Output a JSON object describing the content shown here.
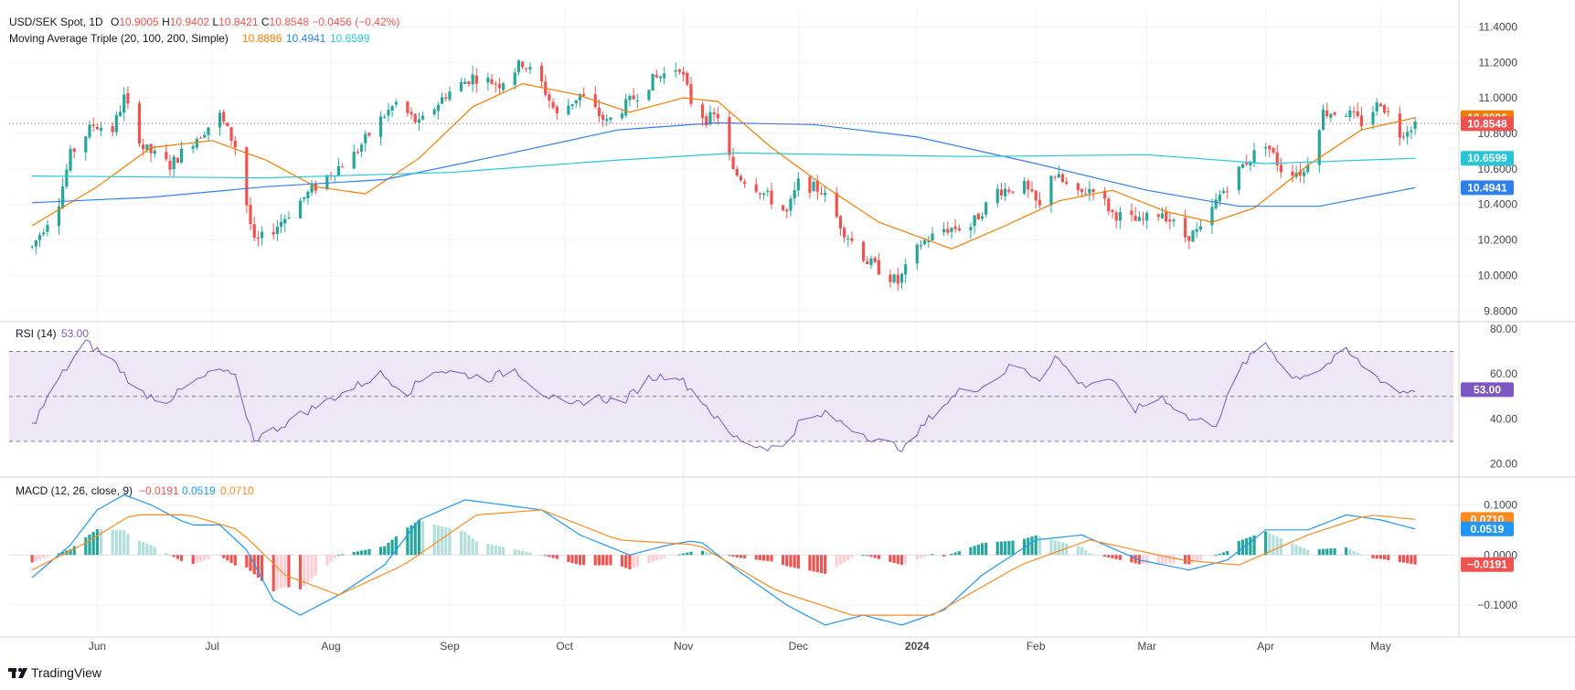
{
  "header": {
    "symbol": "USD/SEK Spot, 1D",
    "ohlc": [
      {
        "k": "O",
        "v": "10.9005"
      },
      {
        "k": "H",
        "v": "10.9402"
      },
      {
        "k": "L",
        "v": "10.8421"
      },
      {
        "k": "C",
        "v": "10.8548"
      }
    ],
    "change": "−0.0456 (−0.42%)",
    "ma_label": "Moving Average Triple (20, 100, 200, Simple)",
    "ma_values": [
      "10.8886",
      "10.4941",
      "10.6599"
    ],
    "rsi_label": "RSI (14)",
    "rsi_value": "53.00",
    "macd_label": "MACD (12, 26, close, 9)",
    "macd_values": [
      "−0.0191",
      "0.0519",
      "0.0710"
    ]
  },
  "branding": {
    "logo_text": "TradingView"
  },
  "colors": {
    "up": "#26a69a",
    "down": "#ef5350",
    "ma20": "#f57c00",
    "ma100": "#2f80ed",
    "ma200": "#26c6da",
    "rsi": "#7e57c2",
    "rsi_band": "#ede7f6",
    "macd": "#2196f3",
    "signal": "#ff8a1f",
    "hist_up_strong": "#26a69a",
    "hist_up_weak": "#b2dfdb",
    "hist_down_strong": "#ef5350",
    "hist_down_weak": "#ffcdd2",
    "grid": "#f0f3fa",
    "text": "#131722",
    "axis_text": "#434651",
    "last_line": "#ef5350"
  },
  "chart_data": [
    {
      "type": "candlestick",
      "title": "USD/SEK Spot, 1D",
      "x_ticks": [
        "Jun",
        "Jul",
        "Aug",
        "Sep",
        "Oct",
        "Nov",
        "Dec",
        "2024",
        "Feb",
        "Mar",
        "Apr",
        "May"
      ],
      "y_ticks": [
        "11.4000",
        "11.2000",
        "11.0000",
        "10.8000",
        "10.6000",
        "10.4000",
        "10.2000",
        "10.0000",
        "9.8000"
      ],
      "ylim": [
        9.75,
        11.5
      ],
      "price_path": [
        [
          "2023-05-15",
          10.16
        ],
        [
          "2023-05-22",
          10.42
        ],
        [
          "2023-05-25",
          10.68
        ],
        [
          "2023-05-31",
          10.85
        ],
        [
          "2023-06-05",
          10.82
        ],
        [
          "2023-06-08",
          11.0
        ],
        [
          "2023-06-13",
          10.72
        ],
        [
          "2023-06-20",
          10.62
        ],
        [
          "2023-06-26",
          10.76
        ],
        [
          "2023-07-03",
          10.9
        ],
        [
          "2023-07-07",
          10.73
        ],
        [
          "2023-07-12",
          10.18
        ],
        [
          "2023-07-17",
          10.26
        ],
        [
          "2023-07-24",
          10.42
        ],
        [
          "2023-07-31",
          10.56
        ],
        [
          "2023-08-07",
          10.68
        ],
        [
          "2023-08-14",
          10.88
        ],
        [
          "2023-08-18",
          10.97
        ],
        [
          "2023-08-24",
          10.85
        ],
        [
          "2023-08-31",
          11.02
        ],
        [
          "2023-09-07",
          11.12
        ],
        [
          "2023-09-14",
          11.08
        ],
        [
          "2023-09-20",
          11.2
        ],
        [
          "2023-09-25",
          11.08
        ],
        [
          "2023-09-29",
          10.9
        ],
        [
          "2023-10-05",
          11.02
        ],
        [
          "2023-10-12",
          10.86
        ],
        [
          "2023-10-18",
          10.98
        ],
        [
          "2023-10-24",
          11.1
        ],
        [
          "2023-10-31",
          11.18
        ],
        [
          "2023-11-03",
          10.98
        ],
        [
          "2023-11-07",
          10.88
        ],
        [
          "2023-11-10",
          10.9
        ],
        [
          "2023-11-14",
          10.58
        ],
        [
          "2023-11-20",
          10.5
        ],
        [
          "2023-11-28",
          10.35
        ],
        [
          "2023-12-01",
          10.52
        ],
        [
          "2023-12-07",
          10.48
        ],
        [
          "2023-12-13",
          10.25
        ],
        [
          "2023-12-19",
          10.08
        ],
        [
          "2023-12-27",
          9.96
        ],
        [
          "2024-01-02",
          10.18
        ],
        [
          "2024-01-08",
          10.26
        ],
        [
          "2024-01-15",
          10.28
        ],
        [
          "2024-01-22",
          10.48
        ],
        [
          "2024-01-29",
          10.5
        ],
        [
          "2024-02-02",
          10.38
        ],
        [
          "2024-02-05",
          10.58
        ],
        [
          "2024-02-12",
          10.45
        ],
        [
          "2024-02-16",
          10.5
        ],
        [
          "2024-02-21",
          10.35
        ],
        [
          "2024-02-28",
          10.3
        ],
        [
          "2024-03-05",
          10.36
        ],
        [
          "2024-03-11",
          10.22
        ],
        [
          "2024-03-15",
          10.25
        ],
        [
          "2024-03-20",
          10.45
        ],
        [
          "2024-03-26",
          10.62
        ],
        [
          "2024-04-01",
          10.75
        ],
        [
          "2024-04-05",
          10.6
        ],
        [
          "2024-04-11",
          10.58
        ],
        [
          "2024-04-16",
          10.92
        ],
        [
          "2024-04-22",
          10.92
        ],
        [
          "2024-04-26",
          10.86
        ],
        [
          "2024-05-01",
          10.98
        ],
        [
          "2024-05-06",
          10.8
        ],
        [
          "2024-05-10",
          10.86
        ]
      ],
      "series": [
        {
          "name": "20",
          "value": 10.8886,
          "values": [
            [
              "2023-05-15",
              10.28
            ],
            [
              "2023-06-01",
              10.5
            ],
            [
              "2023-06-15",
              10.72
            ],
            [
              "2023-07-01",
              10.76
            ],
            [
              "2023-07-15",
              10.65
            ],
            [
              "2023-07-28",
              10.5
            ],
            [
              "2023-08-10",
              10.46
            ],
            [
              "2023-08-24",
              10.66
            ],
            [
              "2023-09-07",
              10.95
            ],
            [
              "2023-09-20",
              11.08
            ],
            [
              "2023-10-04",
              11.02
            ],
            [
              "2023-10-18",
              10.92
            ],
            [
              "2023-11-01",
              11.0
            ],
            [
              "2023-11-10",
              10.98
            ],
            [
              "2023-11-24",
              10.72
            ],
            [
              "2023-12-08",
              10.5
            ],
            [
              "2023-12-22",
              10.3
            ],
            [
              "2024-01-10",
              10.15
            ],
            [
              "2024-01-24",
              10.28
            ],
            [
              "2024-02-07",
              10.42
            ],
            [
              "2024-02-21",
              10.48
            ],
            [
              "2024-03-06",
              10.36
            ],
            [
              "2024-03-18",
              10.3
            ],
            [
              "2024-03-29",
              10.38
            ],
            [
              "2024-04-12",
              10.62
            ],
            [
              "2024-04-26",
              10.82
            ],
            [
              "2024-05-10",
              10.8886
            ]
          ]
        },
        {
          "name": "100",
          "value": 10.4941,
          "values": [
            [
              "2023-05-15",
              10.41
            ],
            [
              "2023-06-15",
              10.44
            ],
            [
              "2023-07-15",
              10.5
            ],
            [
              "2023-08-15",
              10.54
            ],
            [
              "2023-09-15",
              10.68
            ],
            [
              "2023-10-15",
              10.82
            ],
            [
              "2023-11-10",
              10.86
            ],
            [
              "2023-12-05",
              10.85
            ],
            [
              "2024-01-01",
              10.78
            ],
            [
              "2024-02-01",
              10.63
            ],
            [
              "2024-03-01",
              10.48
            ],
            [
              "2024-03-25",
              10.39
            ],
            [
              "2024-04-15",
              10.39
            ],
            [
              "2024-05-10",
              10.4941
            ]
          ]
        },
        {
          "name": "200",
          "value": 10.6599,
          "values": [
            [
              "2023-05-15",
              10.56
            ],
            [
              "2023-07-15",
              10.55
            ],
            [
              "2023-09-01",
              10.58
            ],
            [
              "2023-10-15",
              10.65
            ],
            [
              "2023-11-15",
              10.69
            ],
            [
              "2024-01-15",
              10.67
            ],
            [
              "2024-03-01",
              10.68
            ],
            [
              "2024-04-01",
              10.63
            ],
            [
              "2024-05-10",
              10.6599
            ]
          ]
        }
      ]
    },
    {
      "type": "line",
      "title": "RSI (14)",
      "y_ticks": [
        "80.00",
        "60.00",
        "40.00",
        "20.00"
      ],
      "ylim": [
        15,
        82
      ],
      "levels": [
        70,
        50,
        30
      ],
      "series": [
        {
          "name": "RSI",
          "last": 53.0,
          "values": [
            [
              "2023-05-15",
              37
            ],
            [
              "2023-05-22",
              58
            ],
            [
              "2023-05-29",
              74
            ],
            [
              "2023-06-05",
              66
            ],
            [
              "2023-06-12",
              52
            ],
            [
              "2023-06-19",
              48
            ],
            [
              "2023-06-26",
              56
            ],
            [
              "2023-07-03",
              62
            ],
            [
              "2023-07-07",
              58
            ],
            [
              "2023-07-12",
              31
            ],
            [
              "2023-07-17",
              35
            ],
            [
              "2023-07-24",
              42
            ],
            [
              "2023-07-31",
              48
            ],
            [
              "2023-08-07",
              54
            ],
            [
              "2023-08-14",
              60
            ],
            [
              "2023-08-21",
              52
            ],
            [
              "2023-08-28",
              62
            ],
            [
              "2023-09-04",
              60
            ],
            [
              "2023-09-11",
              58
            ],
            [
              "2023-09-18",
              62
            ],
            [
              "2023-09-25",
              52
            ],
            [
              "2023-10-02",
              45
            ],
            [
              "2023-10-09",
              50
            ],
            [
              "2023-10-16",
              47
            ],
            [
              "2023-10-23",
              58
            ],
            [
              "2023-10-30",
              60
            ],
            [
              "2023-11-06",
              48
            ],
            [
              "2023-11-13",
              33
            ],
            [
              "2023-11-20",
              28
            ],
            [
              "2023-11-27",
              27
            ],
            [
              "2023-12-01",
              38
            ],
            [
              "2023-12-08",
              42
            ],
            [
              "2023-12-15",
              36
            ],
            [
              "2023-12-22",
              30
            ],
            [
              "2023-12-29",
              27
            ],
            [
              "2024-01-05",
              42
            ],
            [
              "2024-01-12",
              52
            ],
            [
              "2024-01-19",
              55
            ],
            [
              "2024-01-26",
              64
            ],
            [
              "2024-02-02",
              58
            ],
            [
              "2024-02-06",
              68
            ],
            [
              "2024-02-13",
              55
            ],
            [
              "2024-02-20",
              58
            ],
            [
              "2024-02-27",
              44
            ],
            [
              "2024-03-05",
              50
            ],
            [
              "2024-03-12",
              40
            ],
            [
              "2024-03-19",
              38
            ],
            [
              "2024-03-26",
              64
            ],
            [
              "2024-04-01",
              74
            ],
            [
              "2024-04-08",
              58
            ],
            [
              "2024-04-15",
              62
            ],
            [
              "2024-04-22",
              70
            ],
            [
              "2024-04-29",
              60
            ],
            [
              "2024-05-06",
              52
            ],
            [
              "2024-05-10",
              53
            ]
          ]
        }
      ]
    },
    {
      "type": "bar+line",
      "title": "MACD (12, 26, close, 9)",
      "y_ticks": [
        "0.1000",
        "0.0000",
        "−0.1000"
      ],
      "ylim": [
        -0.16,
        0.15
      ],
      "series": [
        {
          "name": "MACD",
          "last": 0.0519,
          "values": [
            [
              "2023-05-15",
              -0.045
            ],
            [
              "2023-05-25",
              0.02
            ],
            [
              "2023-06-01",
              0.09
            ],
            [
              "2023-06-08",
              0.12
            ],
            [
              "2023-06-15",
              0.1
            ],
            [
              "2023-06-25",
              0.06
            ],
            [
              "2023-07-03",
              0.06
            ],
            [
              "2023-07-10",
              0.01
            ],
            [
              "2023-07-17",
              -0.09
            ],
            [
              "2023-07-24",
              -0.12
            ],
            [
              "2023-08-03",
              -0.08
            ],
            [
              "2023-08-15",
              -0.02
            ],
            [
              "2023-08-24",
              0.07
            ],
            [
              "2023-09-05",
              0.11
            ],
            [
              "2023-09-15",
              0.1
            ],
            [
              "2023-09-25",
              0.09
            ],
            [
              "2023-10-05",
              0.04
            ],
            [
              "2023-10-18",
              0.0
            ],
            [
              "2023-10-28",
              0.02
            ],
            [
              "2023-11-05",
              0.03
            ],
            [
              "2023-11-15",
              -0.03
            ],
            [
              "2023-11-28",
              -0.1
            ],
            [
              "2023-12-08",
              -0.14
            ],
            [
              "2023-12-18",
              -0.12
            ],
            [
              "2023-12-28",
              -0.14
            ],
            [
              "2024-01-08",
              -0.11
            ],
            [
              "2024-01-18",
              -0.04
            ],
            [
              "2024-02-01",
              0.03
            ],
            [
              "2024-02-13",
              0.04
            ],
            [
              "2024-02-28",
              -0.01
            ],
            [
              "2024-03-12",
              -0.03
            ],
            [
              "2024-03-22",
              -0.01
            ],
            [
              "2024-04-01",
              0.05
            ],
            [
              "2024-04-12",
              0.05
            ],
            [
              "2024-04-22",
              0.08
            ],
            [
              "2024-05-01",
              0.07
            ],
            [
              "2024-05-10",
              0.0519
            ]
          ]
        },
        {
          "name": "Signal",
          "last": 0.071,
          "values": [
            [
              "2023-05-15",
              -0.03
            ],
            [
              "2023-05-28",
              0.02
            ],
            [
              "2023-06-10",
              0.08
            ],
            [
              "2023-06-25",
              0.08
            ],
            [
              "2023-07-08",
              0.05
            ],
            [
              "2023-07-20",
              -0.04
            ],
            [
              "2023-08-03",
              -0.08
            ],
            [
              "2023-08-20",
              -0.02
            ],
            [
              "2023-09-08",
              0.08
            ],
            [
              "2023-09-25",
              0.09
            ],
            [
              "2023-10-15",
              0.03
            ],
            [
              "2023-11-05",
              0.02
            ],
            [
              "2023-11-25",
              -0.07
            ],
            [
              "2023-12-15",
              -0.12
            ],
            [
              "2024-01-05",
              -0.12
            ],
            [
              "2024-01-28",
              -0.02
            ],
            [
              "2024-02-15",
              0.03
            ],
            [
              "2024-03-10",
              -0.01
            ],
            [
              "2024-03-25",
              -0.02
            ],
            [
              "2024-04-12",
              0.04
            ],
            [
              "2024-04-28",
              0.08
            ],
            [
              "2024-05-10",
              0.071
            ]
          ]
        },
        {
          "name": "Histogram",
          "last": -0.0191
        }
      ]
    }
  ]
}
